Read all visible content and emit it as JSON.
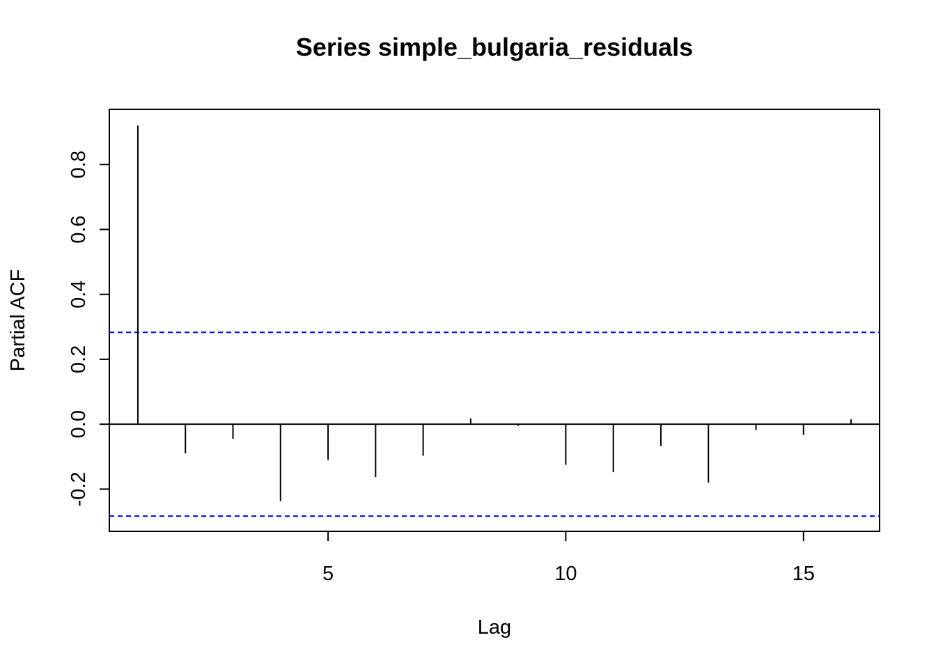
{
  "chart_data": {
    "type": "bar",
    "title": "Series  simple_bulgaria_residuals",
    "xlabel": "Lag",
    "ylabel": "Partial ACF",
    "x": [
      1,
      2,
      3,
      4,
      5,
      6,
      7,
      8,
      9,
      10,
      11,
      12,
      13,
      14,
      15,
      16
    ],
    "values": [
      0.92,
      -0.09,
      -0.045,
      -0.237,
      -0.11,
      -0.163,
      -0.097,
      0.018,
      -0.005,
      -0.125,
      -0.148,
      -0.067,
      -0.18,
      -0.018,
      -0.033,
      0.015
    ],
    "confidence_bound": 0.283,
    "xlim": [
      0.4,
      16.6
    ],
    "ylim": [
      -0.33,
      0.97
    ],
    "x_ticks": [
      5,
      10,
      15
    ],
    "y_ticks": [
      -0.2,
      0.0,
      0.2,
      0.4,
      0.6,
      0.8
    ],
    "y_tick_labels": [
      "-0.2",
      "0.0",
      "0.2",
      "0.4",
      "0.6",
      "0.8"
    ],
    "zero_line": true,
    "grid": false,
    "confidence_line_color": "#0000ff",
    "spike_color": "#000000"
  }
}
